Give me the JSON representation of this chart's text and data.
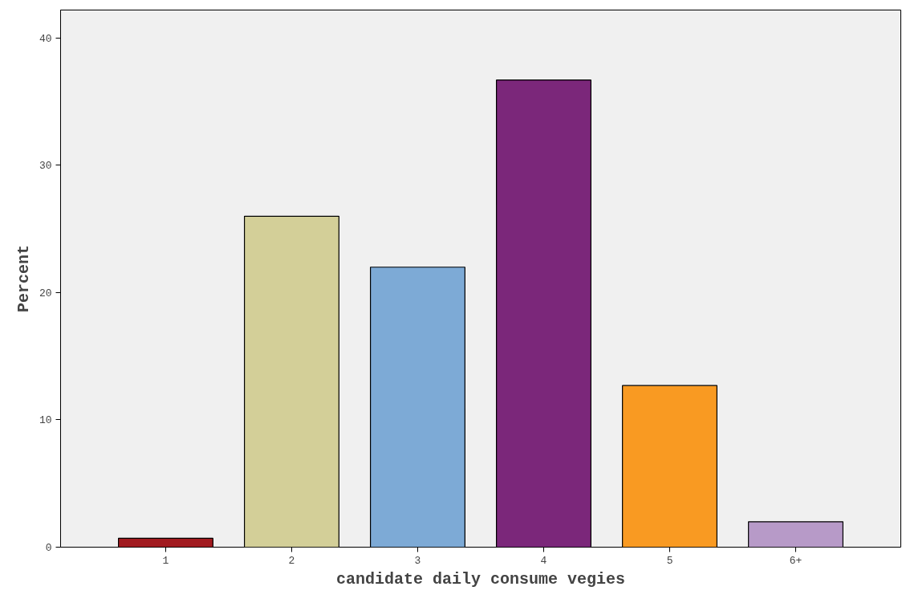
{
  "chart_data": {
    "type": "bar",
    "xlabel": "candidate daily consume vegies",
    "ylabel": "Percent",
    "categories": [
      "1",
      "2",
      "3",
      "4",
      "5",
      "6+"
    ],
    "values": [
      0.7,
      26.0,
      22.0,
      36.7,
      12.7,
      2.0
    ],
    "colors": [
      "#a11a1f",
      "#d3cf98",
      "#7daad6",
      "#7b277a",
      "#f99a22",
      "#b79ac8"
    ],
    "ylim": [
      0,
      42.2
    ],
    "yticks": [
      0,
      10,
      20,
      30,
      40
    ],
    "grid": false
  }
}
